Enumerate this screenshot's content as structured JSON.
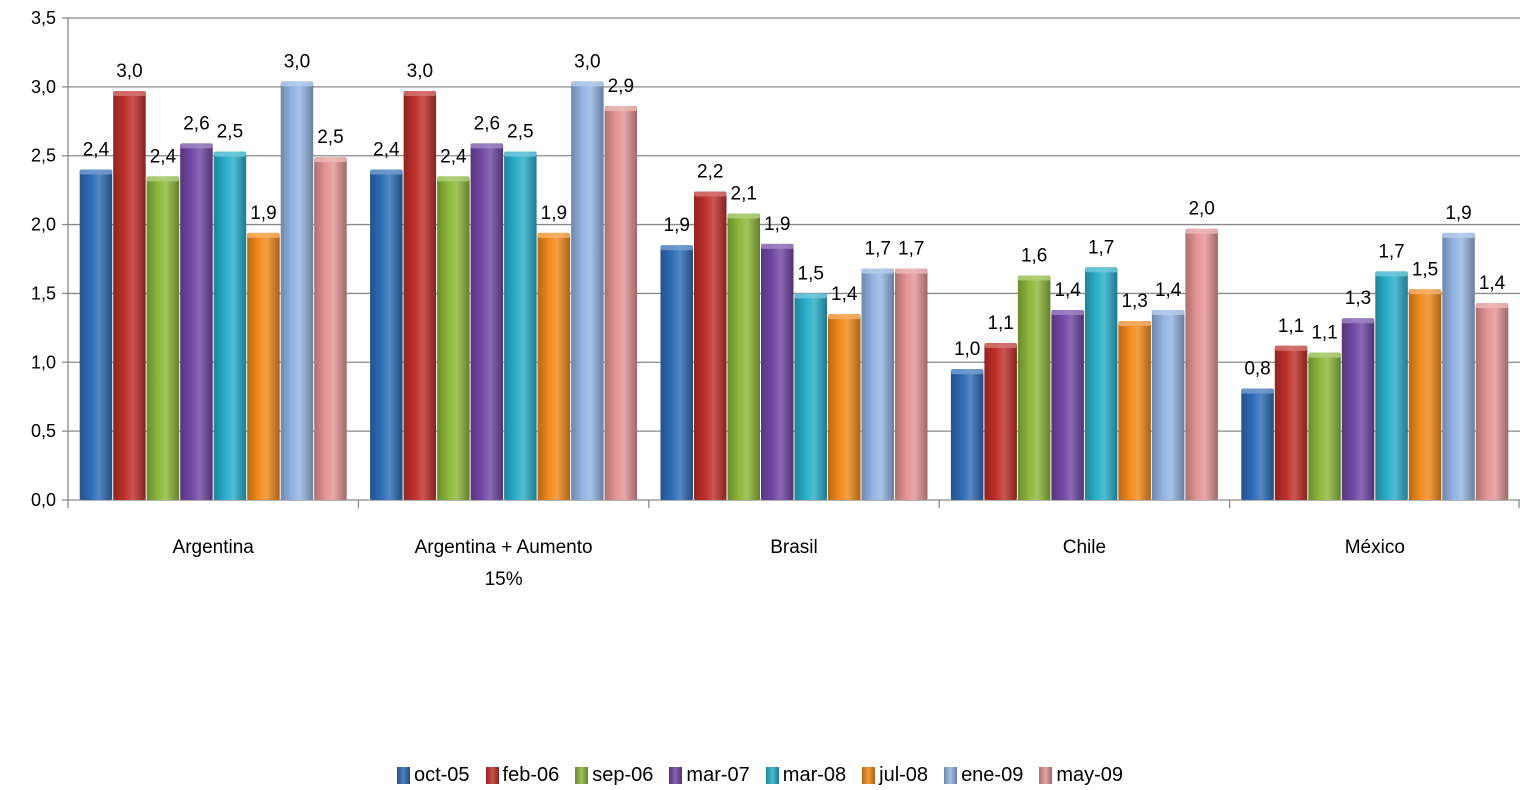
{
  "chart_data": {
    "type": "bar",
    "categories": [
      [
        "Argentina"
      ],
      [
        "Argentina + Aumento",
        "15%"
      ],
      [
        "Brasil"
      ],
      [
        "Chile"
      ],
      [
        "México"
      ]
    ],
    "ylim": [
      0,
      3.5
    ],
    "yticks": [
      "0,0",
      "0,5",
      "1,0",
      "1,5",
      "2,0",
      "2,5",
      "3,0",
      "3,5"
    ],
    "grid": true,
    "legend_position": "bottom",
    "series": [
      {
        "name": "oct-05",
        "color": "#2E6DB8",
        "values": [
          2.4,
          2.4,
          1.85,
          0.95,
          0.81
        ],
        "labels": [
          "2,4",
          "2,4",
          "1,9",
          "1,0",
          "0,8"
        ]
      },
      {
        "name": "feb-06",
        "color": "#C0302B",
        "values": [
          2.97,
          2.97,
          2.24,
          1.14,
          1.12
        ],
        "labels": [
          "3,0",
          "3,0",
          "2,2",
          "1,1",
          "1,1"
        ]
      },
      {
        "name": "sep-06",
        "color": "#8DB83A",
        "values": [
          2.35,
          2.35,
          2.08,
          1.63,
          1.07
        ],
        "labels": [
          "2,4",
          "2,4",
          "2,1",
          "1,6",
          "1,1"
        ]
      },
      {
        "name": "mar-07",
        "color": "#7248A4",
        "values": [
          2.59,
          2.59,
          1.86,
          1.38,
          1.32
        ],
        "labels": [
          "2,6",
          "2,6",
          "1,9",
          "1,4",
          "1,3"
        ]
      },
      {
        "name": "mar-08",
        "color": "#29AFCB",
        "values": [
          2.53,
          2.53,
          1.5,
          1.69,
          1.66
        ],
        "labels": [
          "2,5",
          "2,5",
          "1,5",
          "1,7",
          "1,7"
        ]
      },
      {
        "name": "jul-08",
        "color": "#F28A1C",
        "values": [
          1.94,
          1.94,
          1.35,
          1.3,
          1.53
        ],
        "labels": [
          "1,9",
          "1,9",
          "1,4",
          "1,3",
          "1,5"
        ]
      },
      {
        "name": "ene-09",
        "color": "#94B4E2",
        "values": [
          3.04,
          3.04,
          1.68,
          1.38,
          1.94
        ],
        "labels": [
          "3,0",
          "3,0",
          "1,7",
          "1,4",
          "1,9"
        ]
      },
      {
        "name": "may-09",
        "color": "#E39594",
        "values": [
          2.49,
          2.86,
          1.68,
          1.97,
          1.43
        ],
        "labels": [
          "2,5",
          "2,9",
          "1,7",
          "2,0",
          "1,4"
        ]
      }
    ]
  }
}
